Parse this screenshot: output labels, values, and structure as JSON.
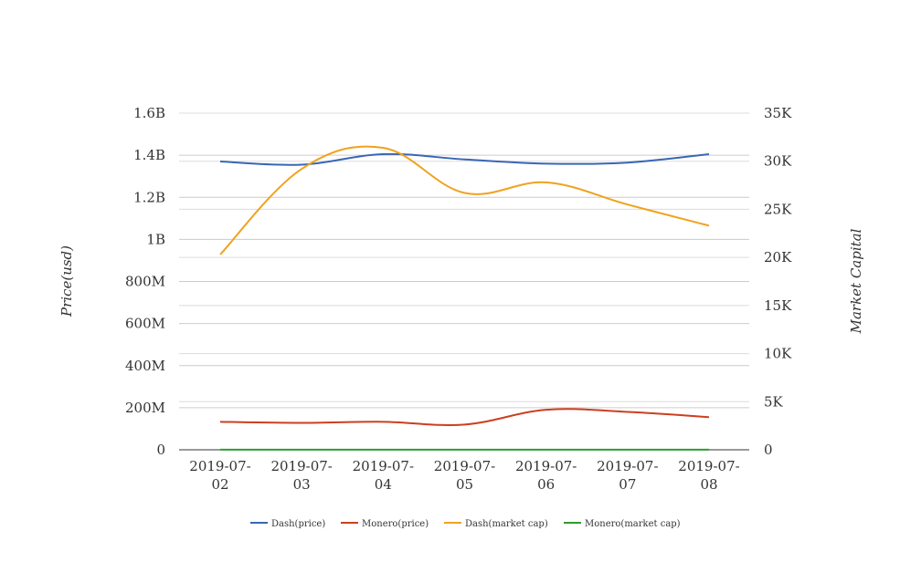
{
  "chart_data": {
    "type": "line",
    "categories": [
      "2019-07-02",
      "2019-07-03",
      "2019-07-04",
      "2019-07-05",
      "2019-07-06",
      "2019-07-07",
      "2019-07-08"
    ],
    "category_labels": [
      [
        "2019-07-",
        "02"
      ],
      [
        "2019-07-",
        "03"
      ],
      [
        "2019-07-",
        "04"
      ],
      [
        "2019-07-",
        "05"
      ],
      [
        "2019-07-",
        "06"
      ],
      [
        "2019-07-",
        "07"
      ],
      [
        "2019-07-",
        "08"
      ]
    ],
    "ylabel_left": "Price(usd)",
    "ylabel_right": "Market Capital",
    "left_axis": {
      "ylim": [
        0,
        1600000000
      ],
      "ticks": [
        0,
        200000000,
        400000000,
        600000000,
        800000000,
        1000000000,
        1200000000,
        1400000000,
        1600000000
      ],
      "tick_labels": [
        "0",
        "200M",
        "400M",
        "600M",
        "800M",
        "1B",
        "1.2B",
        "1.4B",
        "1.6B"
      ]
    },
    "right_axis": {
      "ylim": [
        0,
        35000
      ],
      "ticks": [
        0,
        5000,
        10000,
        15000,
        20000,
        25000,
        30000,
        35000
      ],
      "tick_labels": [
        "0",
        "5K",
        "10K",
        "15K",
        "20K",
        "25K",
        "30K",
        "35K"
      ]
    },
    "grid": true,
    "legend_position": "bottom",
    "series": [
      {
        "name": "Dash(price)",
        "axis": "left",
        "color": "#3a66b5",
        "values": [
          1370000000,
          1355000000,
          1405000000,
          1380000000,
          1360000000,
          1365000000,
          1405000000
        ]
      },
      {
        "name": "Monero(price)",
        "axis": "left",
        "color": "#cc3f1f",
        "values": [
          133000000,
          128000000,
          133000000,
          120000000,
          190000000,
          180000000,
          155000000
        ]
      },
      {
        "name": "Dash(market cap)",
        "axis": "right",
        "color": "#f0a21e",
        "values": [
          20300,
          29200,
          31400,
          26700,
          27800,
          25500,
          23300
        ]
      },
      {
        "name": "Monero(market cap)",
        "axis": "right",
        "color": "#2e9b2e",
        "values": [
          10,
          10,
          10,
          10,
          10,
          10,
          10
        ]
      }
    ]
  }
}
